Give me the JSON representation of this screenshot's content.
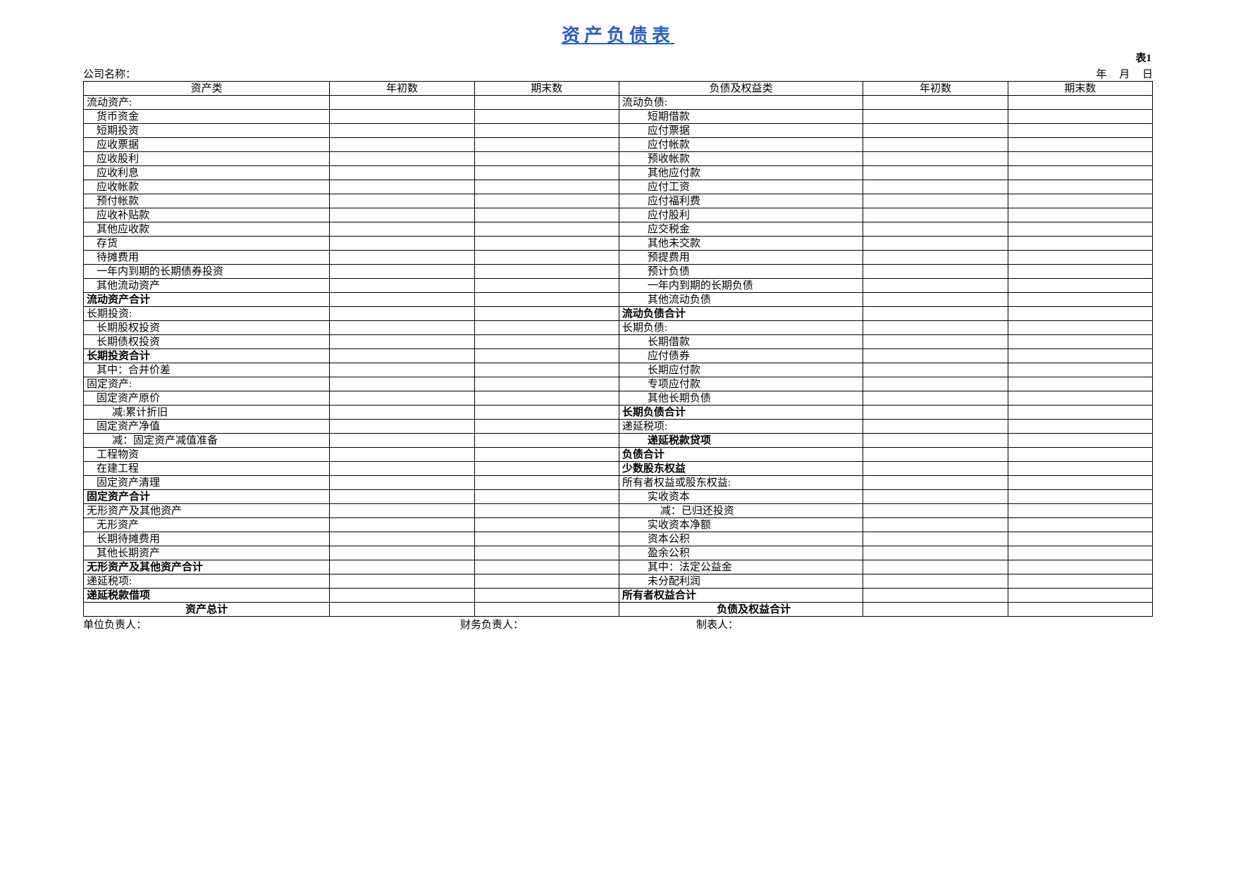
{
  "title": "资产负债表",
  "tableLabel": "表1",
  "labels": {
    "company": "公司名称：",
    "year": "年",
    "month": "月",
    "day": "日",
    "unitHead": "单位负责人：",
    "financeHead": "财务负责人：",
    "preparer": "制表人："
  },
  "headers": {
    "assetClass": "资产类",
    "beginYear": "年初数",
    "endPeriod": "期末数",
    "liabEquityClass": "负债及权益类"
  },
  "rows": [
    {
      "a": "流动资产:",
      "ai": 0,
      "ab": 0,
      "l": "流动负债:",
      "li": 0,
      "lb": 0
    },
    {
      "a": "货币资金",
      "ai": 1,
      "ab": 0,
      "l": "短期借款",
      "li": 2,
      "lb": 0
    },
    {
      "a": "短期投资",
      "ai": 1,
      "ab": 0,
      "l": "应付票据",
      "li": 2,
      "lb": 0
    },
    {
      "a": "应收票据",
      "ai": 1,
      "ab": 0,
      "l": "应付帐款",
      "li": 2,
      "lb": 0
    },
    {
      "a": "应收股利",
      "ai": 1,
      "ab": 0,
      "l": "预收帐款",
      "li": 2,
      "lb": 0
    },
    {
      "a": "应收利息",
      "ai": 1,
      "ab": 0,
      "l": "其他应付款",
      "li": 2,
      "lb": 0
    },
    {
      "a": "应收帐款",
      "ai": 1,
      "ab": 0,
      "l": "应付工资",
      "li": 2,
      "lb": 0
    },
    {
      "a": "预付帐款",
      "ai": 1,
      "ab": 0,
      "l": "应付福利费",
      "li": 2,
      "lb": 0
    },
    {
      "a": "应收补贴款",
      "ai": 1,
      "ab": 0,
      "l": "应付股利",
      "li": 2,
      "lb": 0
    },
    {
      "a": "其他应收款",
      "ai": 1,
      "ab": 0,
      "l": "应交税金",
      "li": 2,
      "lb": 0
    },
    {
      "a": "存货",
      "ai": 1,
      "ab": 0,
      "l": "其他未交款",
      "li": 2,
      "lb": 0
    },
    {
      "a": "待摊费用",
      "ai": 1,
      "ab": 0,
      "l": "预提费用",
      "li": 2,
      "lb": 0
    },
    {
      "a": "一年内到期的长期债券投资",
      "ai": 1,
      "ab": 0,
      "l": "预计负债",
      "li": 2,
      "lb": 0
    },
    {
      "a": "其他流动资产",
      "ai": 1,
      "ab": 0,
      "l": "一年内到期的长期负债",
      "li": 2,
      "lb": 0
    },
    {
      "a": "流动资产合计",
      "ai": 0,
      "ab": 1,
      "l": "其他流动负债",
      "li": 2,
      "lb": 0
    },
    {
      "a": "长期投资:",
      "ai": 0,
      "ab": 0,
      "l": "流动负债合计",
      "li": 0,
      "lb": 1
    },
    {
      "a": "长期股权投资",
      "ai": 1,
      "ab": 0,
      "l": "长期负债:",
      "li": 0,
      "lb": 0
    },
    {
      "a": "长期债权投资",
      "ai": 1,
      "ab": 0,
      "l": "长期借款",
      "li": 2,
      "lb": 0
    },
    {
      "a": "长期投资合计",
      "ai": 0,
      "ab": 1,
      "l": "应付债券",
      "li": 2,
      "lb": 0
    },
    {
      "a": "其中：合并价差",
      "ai": 1,
      "ab": 0,
      "l": "长期应付款",
      "li": 2,
      "lb": 0
    },
    {
      "a": "固定资产:",
      "ai": 0,
      "ab": 0,
      "l": "专项应付款",
      "li": 2,
      "lb": 0
    },
    {
      "a": "固定资产原价",
      "ai": 1,
      "ab": 0,
      "l": "其他长期负债",
      "li": 2,
      "lb": 0
    },
    {
      "a": "减:累计折旧",
      "ai": 2,
      "ab": 0,
      "l": "长期负债合计",
      "li": 0,
      "lb": 1
    },
    {
      "a": "固定资产净值",
      "ai": 1,
      "ab": 0,
      "l": "递延税项:",
      "li": 0,
      "lb": 0
    },
    {
      "a": "减：固定资产减值准备",
      "ai": 2,
      "ab": 0,
      "l": "递延税款贷项",
      "li": 2,
      "lb": 1
    },
    {
      "a": "工程物资",
      "ai": 1,
      "ab": 0,
      "l": "负债合计",
      "li": 0,
      "lb": 1
    },
    {
      "a": "在建工程",
      "ai": 1,
      "ab": 0,
      "l": "少数股东权益",
      "li": 0,
      "lb": 1
    },
    {
      "a": "固定资产清理",
      "ai": 1,
      "ab": 0,
      "l": "所有者权益或股东权益:",
      "li": 0,
      "lb": 0
    },
    {
      "a": "固定资产合计",
      "ai": 0,
      "ab": 1,
      "l": "实收资本",
      "li": 2,
      "lb": 0
    },
    {
      "a": "无形资产及其他资产",
      "ai": 0,
      "ab": 0,
      "l": "减：已归还投资",
      "li": 3,
      "lb": 0
    },
    {
      "a": "无形资产",
      "ai": 1,
      "ab": 0,
      "l": "实收资本净额",
      "li": 2,
      "lb": 0
    },
    {
      "a": "长期待摊费用",
      "ai": 1,
      "ab": 0,
      "l": "资本公积",
      "li": 2,
      "lb": 0
    },
    {
      "a": "其他长期资产",
      "ai": 1,
      "ab": 0,
      "l": "盈余公积",
      "li": 2,
      "lb": 0
    },
    {
      "a": "无形资产及其他资产合计",
      "ai": 0,
      "ab": 1,
      "l": "其中：法定公益金",
      "li": 2,
      "lb": 0
    },
    {
      "a": "递延税项:",
      "ai": 0,
      "ab": 0,
      "l": "未分配利润",
      "li": 2,
      "lb": 0
    },
    {
      "a": "递延税款借项",
      "ai": 0,
      "ab": 1,
      "l": "所有者权益合计",
      "li": 0,
      "lb": 1
    },
    {
      "a": "资产总计",
      "ai": 0,
      "ab": 1,
      "ac": 1,
      "l": "负债及权益合计",
      "li": 2,
      "lb": 1,
      "lc": 1
    }
  ]
}
